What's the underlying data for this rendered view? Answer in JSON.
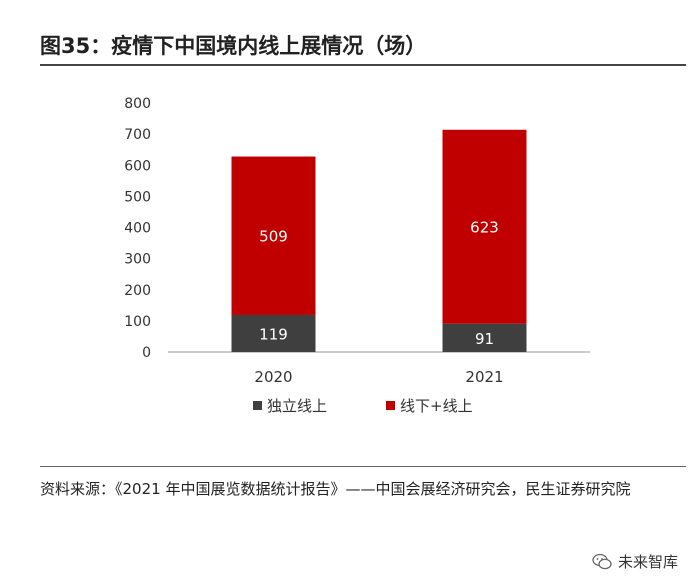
{
  "title": "图35：疫情下中国境内线上展情况（场）",
  "chart_data": {
    "type": "bar",
    "stacked": true,
    "categories": [
      "2020",
      "2021"
    ],
    "series": [
      {
        "name": "独立线上",
        "values": [
          119,
          91
        ],
        "color": "#3f3f3f"
      },
      {
        "name": "线下+线上",
        "values": [
          509,
          623
        ],
        "color": "#c00000"
      }
    ],
    "ylim": [
      0,
      800
    ],
    "yticks": [
      0,
      100,
      200,
      300,
      400,
      500,
      600,
      700,
      800
    ],
    "grid": false,
    "legend_position": "bottom"
  },
  "source": {
    "text": "资料来源：《2021 年中国展览数据统计报告》——中国会展经济研究会，民生证券研究院"
  },
  "watermark": {
    "text": "未来智库",
    "icon": "wechat-icon"
  }
}
